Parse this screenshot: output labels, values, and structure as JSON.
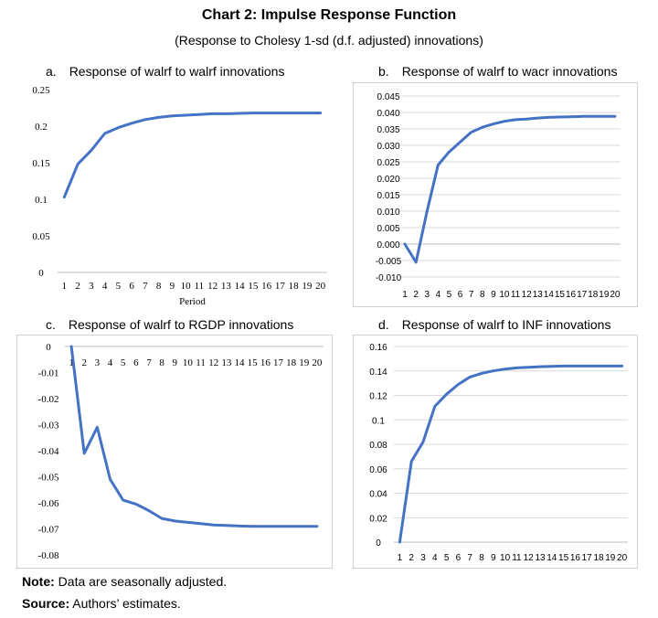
{
  "title": "Chart 2: Impulse Response Function",
  "subtitle": "(Response to Cholesy 1-sd (d.f. adjusted) innovations)",
  "note_label": "Note:",
  "note_text": " Data are seasonally adjusted.",
  "source_label": "Source:",
  "source_text": " Authors’ estimates.",
  "chart_data": [
    {
      "type": "line",
      "panel_label": "a.",
      "title": "Response of walrf to walrf innovations",
      "xlabel": "Period",
      "ylabel": "",
      "x": [
        1,
        2,
        3,
        4,
        5,
        6,
        7,
        8,
        9,
        10,
        11,
        12,
        13,
        14,
        15,
        16,
        17,
        18,
        19,
        20
      ],
      "x_tick_labels": [
        "1",
        "2",
        "3",
        "4",
        "5",
        "6",
        "7",
        "8",
        "9",
        "10",
        "11",
        "12",
        "13",
        "14",
        "15",
        "16",
        "17",
        "18",
        "19",
        "20"
      ],
      "y_ticks": [
        "0",
        "0.05",
        "0.1",
        "0.15",
        "0.2",
        "0.25"
      ],
      "ylim": [
        0,
        0.25
      ],
      "grid": false,
      "series": [
        {
          "values": [
            0.103,
            0.148,
            0.167,
            0.19,
            0.198,
            0.204,
            0.209,
            0.212,
            0.214,
            0.215,
            0.216,
            0.217,
            0.217,
            0.2175,
            0.218,
            0.218,
            0.218,
            0.218,
            0.218,
            0.218
          ]
        }
      ],
      "color": "#4472C4"
    },
    {
      "type": "line",
      "panel_label": "b.",
      "title": "Response of walrf to wacr innovations",
      "xlabel": "",
      "ylabel": "",
      "x": [
        1,
        2,
        3,
        4,
        5,
        6,
        7,
        8,
        9,
        10,
        11,
        12,
        13,
        14,
        15,
        16,
        17,
        18,
        19,
        20
      ],
      "x_tick_labels": [
        "1",
        "2",
        "3",
        "4",
        "5",
        "6",
        "7",
        "8",
        "9",
        "10",
        "11",
        "12",
        "13",
        "14",
        "15",
        "16",
        "17",
        "18",
        "19",
        "20"
      ],
      "y_ticks": [
        "-0.010",
        "-0.005",
        "0.000",
        "0.005",
        "0.010",
        "0.015",
        "0.020",
        "0.025",
        "0.030",
        "0.035",
        "0.040",
        "0.045"
      ],
      "ylim": [
        -0.01,
        0.045
      ],
      "grid": true,
      "series": [
        {
          "values": [
            0.0,
            -0.0055,
            0.01,
            0.024,
            0.028,
            0.031,
            0.034,
            0.0355,
            0.0365,
            0.0373,
            0.0378,
            0.038,
            0.0383,
            0.0385,
            0.0386,
            0.0387,
            0.0388,
            0.0388,
            0.0388,
            0.0388
          ]
        }
      ],
      "color": "#4472C4"
    },
    {
      "type": "line",
      "panel_label": "c.",
      "title": "Response of walrf to RGDP innovations",
      "xlabel": "",
      "ylabel": "",
      "x": [
        1,
        2,
        3,
        4,
        5,
        6,
        7,
        8,
        9,
        10,
        11,
        12,
        13,
        14,
        15,
        16,
        17,
        18,
        19,
        20
      ],
      "x_tick_labels": [
        "1",
        "2",
        "3",
        "4",
        "5",
        "6",
        "7",
        "8",
        "9",
        "10",
        "11",
        "12",
        "13",
        "14",
        "15",
        "16",
        "17",
        "18",
        "19",
        "20"
      ],
      "y_ticks": [
        "-0.08",
        "-0.07",
        "-0.06",
        "-0.05",
        "-0.04",
        "-0.03",
        "-0.02",
        "-0.01",
        "0"
      ],
      "ylim": [
        -0.08,
        0
      ],
      "grid": false,
      "series": [
        {
          "values": [
            0.0,
            -0.041,
            -0.031,
            -0.051,
            -0.059,
            -0.0605,
            -0.063,
            -0.066,
            -0.067,
            -0.0675,
            -0.068,
            -0.0685,
            -0.0687,
            -0.0689,
            -0.069,
            -0.069,
            -0.069,
            -0.069,
            -0.069,
            -0.069
          ]
        }
      ],
      "color": "#4472C4"
    },
    {
      "type": "line",
      "panel_label": "d.",
      "title": "Response of walrf to INF innovations",
      "xlabel": "",
      "ylabel": "",
      "x": [
        1,
        2,
        3,
        4,
        5,
        6,
        7,
        8,
        9,
        10,
        11,
        12,
        13,
        14,
        15,
        16,
        17,
        18,
        19,
        20
      ],
      "x_tick_labels": [
        "1",
        "2",
        "3",
        "4",
        "5",
        "6",
        "7",
        "8",
        "9",
        "10",
        "11",
        "12",
        "13",
        "14",
        "15",
        "16",
        "17",
        "18",
        "19",
        "20"
      ],
      "y_ticks": [
        "0",
        "0.02",
        "0.04",
        "0.06",
        "0.08",
        "0.1",
        "0.12",
        "0.14",
        "0.16"
      ],
      "ylim": [
        0,
        0.16
      ],
      "grid": true,
      "series": [
        {
          "values": [
            0.0,
            0.066,
            0.082,
            0.111,
            0.121,
            0.129,
            0.135,
            0.138,
            0.14,
            0.1415,
            0.1425,
            0.143,
            0.1435,
            0.1438,
            0.144,
            0.144,
            0.144,
            0.144,
            0.144,
            0.144
          ]
        }
      ],
      "color": "#4472C4"
    }
  ]
}
